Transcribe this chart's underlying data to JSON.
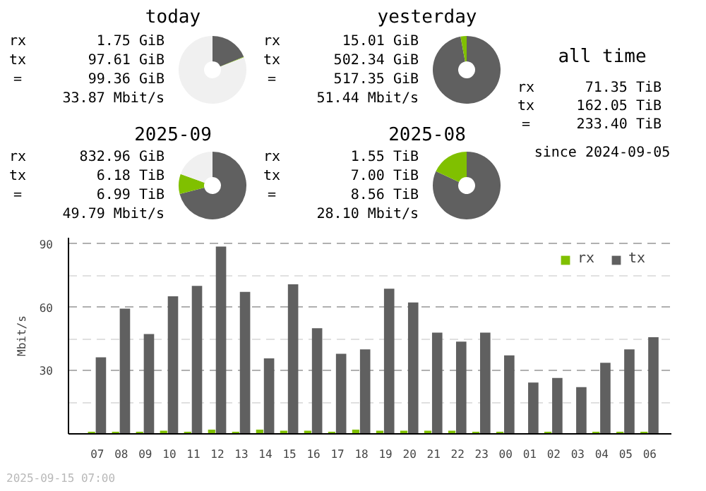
{
  "chart_data": [
    {
      "type": "donut",
      "title": "today",
      "categories": [
        null,
        null,
        null
      ],
      "values": [
        18.7,
        0.3,
        81.0
      ],
      "colors": [
        "#606060",
        "#80c000",
        "#f0f0f0"
      ],
      "annotations": [
        "rx",
        "1.75 GiB",
        "tx",
        "97.61 GiB",
        "=",
        "99.36 GiB",
        "33.87 Mbit/s"
      ]
    },
    {
      "type": "donut",
      "title": "yesterday",
      "categories": [
        null,
        null,
        null
      ],
      "values": [
        97.1,
        2.9,
        0
      ],
      "colors": [
        "#606060",
        "#80c000",
        "#f0f0f0"
      ],
      "annotations": [
        "rx",
        "15.01 GiB",
        "tx",
        "502.34 GiB",
        "=",
        "517.35 GiB",
        "51.44 Mbit/s"
      ]
    },
    {
      "type": "other",
      "title": "all time",
      "annotations": [
        "rx",
        "71.35 TiB",
        "tx",
        "162.05 TiB",
        "=",
        "233.40 TiB",
        "since 2024-09-05"
      ]
    },
    {
      "type": "donut",
      "title": "2025-09",
      "categories": [
        null,
        null,
        null
      ],
      "values": [
        71.0,
        9.5,
        19.5
      ],
      "colors": [
        "#606060",
        "#80c000",
        "#f0f0f0"
      ],
      "annotations": [
        "rx",
        "832.96 GiB",
        "tx",
        "6.18 TiB",
        "=",
        "6.99 TiB",
        "49.79 Mbit/s"
      ]
    },
    {
      "type": "donut",
      "title": "2025-08",
      "categories": [
        null,
        null,
        null
      ],
      "values": [
        81.9,
        18.1,
        0
      ],
      "colors": [
        "#606060",
        "#80c000",
        "#f0f0f0"
      ],
      "annotations": [
        "rx",
        "1.55 TiB",
        "tx",
        "7.00 TiB",
        "=",
        "8.56 TiB",
        "28.10 Mbit/s"
      ]
    },
    {
      "type": "bar",
      "ylabel": "Mbit/s",
      "categories": [
        "07",
        "08",
        "09",
        "10",
        "11",
        "12",
        "13",
        "14",
        "15",
        "16",
        "17",
        "18",
        "19",
        "20",
        "21",
        "22",
        "23",
        "00",
        "01",
        "02",
        "03",
        "04",
        "05",
        "06"
      ],
      "series": [
        {
          "name": "rx",
          "color": "#80c000",
          "values": [
            1,
            1,
            1,
            1.5,
            1,
            2,
            1,
            2,
            1.5,
            1.5,
            1,
            2,
            1.5,
            1.5,
            1.5,
            1.5,
            1,
            1,
            0.3,
            1,
            0.3,
            1,
            1,
            1
          ]
        },
        {
          "name": "tx",
          "color": "#606060",
          "values": [
            36.3,
            59.4,
            47.3,
            65.2,
            70.2,
            88.8,
            67.3,
            35.8,
            70.9,
            50.1,
            38.0,
            40.1,
            68.8,
            62.3,
            48.0,
            43.7,
            48.0,
            37.2,
            24.3,
            26.5,
            22.2,
            33.7,
            40.1,
            45.8
          ]
        }
      ],
      "ylim": [
        0,
        93
      ],
      "yticks": [
        30,
        60,
        90
      ],
      "grid": "y",
      "legend": "top right",
      "annotations": [
        "2025-09-15 07:00"
      ]
    }
  ]
}
